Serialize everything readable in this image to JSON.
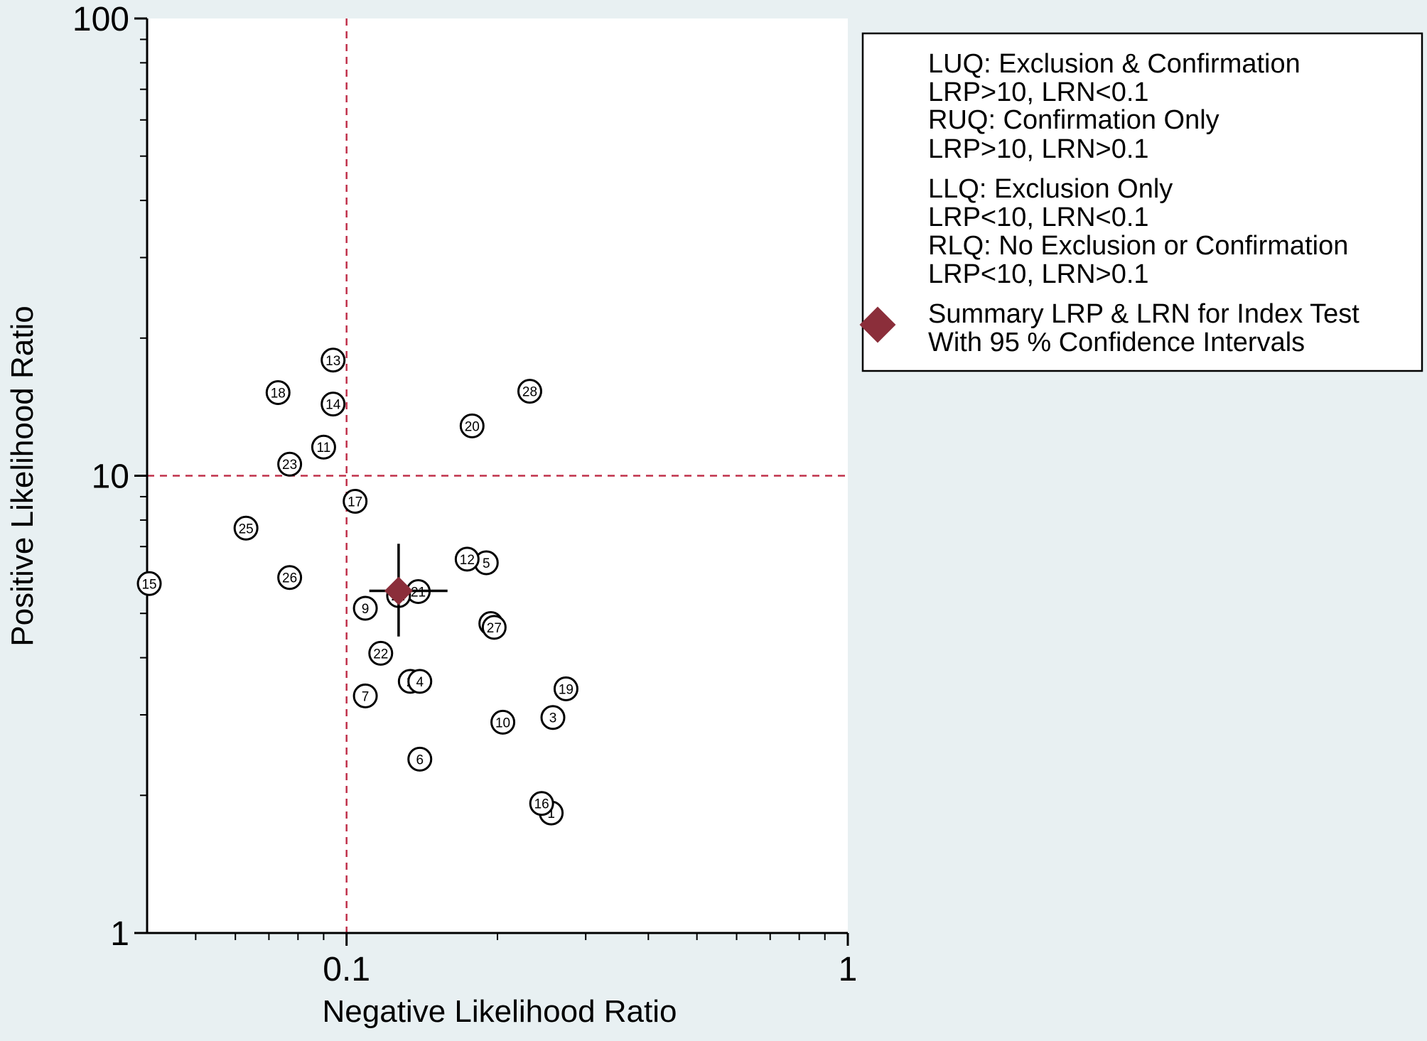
{
  "chart_data": {
    "type": "scatter",
    "title": "",
    "xlabel": "Negative Likelihood Ratio",
    "ylabel": "Positive Likelihood Ratio",
    "x_scale": "log",
    "y_scale": "log",
    "xlim": [
      0.04,
      1
    ],
    "ylim": [
      1,
      100
    ],
    "x_ticks": [
      {
        "value": 0.1,
        "label": "0.1"
      },
      {
        "value": 1,
        "label": "1"
      }
    ],
    "y_ticks": [
      {
        "value": 1,
        "label": "1"
      },
      {
        "value": 10,
        "label": "10"
      },
      {
        "value": 100,
        "label": "100"
      }
    ],
    "reference_lines": {
      "x": 0.1,
      "y": 10,
      "color": "#c0304a"
    },
    "points": [
      {
        "id": "1",
        "x": 0.256,
        "y": 1.83
      },
      {
        "id": "2",
        "x": 0.134,
        "y": 3.55
      },
      {
        "id": "3",
        "x": 0.258,
        "y": 2.96
      },
      {
        "id": "4",
        "x": 0.14,
        "y": 3.55
      },
      {
        "id": "5",
        "x": 0.19,
        "y": 6.45
      },
      {
        "id": "6",
        "x": 0.14,
        "y": 2.4
      },
      {
        "id": "7",
        "x": 0.109,
        "y": 3.3
      },
      {
        "id": "8",
        "x": 0.194,
        "y": 4.75
      },
      {
        "id": "9",
        "x": 0.109,
        "y": 5.13
      },
      {
        "id": "10",
        "x": 0.205,
        "y": 2.89
      },
      {
        "id": "11",
        "x": 0.09,
        "y": 11.55
      },
      {
        "id": "12",
        "x": 0.174,
        "y": 6.57
      },
      {
        "id": "13",
        "x": 0.094,
        "y": 17.9
      },
      {
        "id": "14",
        "x": 0.094,
        "y": 14.35
      },
      {
        "id": "15",
        "x": 0.0404,
        "y": 5.81
      },
      {
        "id": "16",
        "x": 0.245,
        "y": 1.92
      },
      {
        "id": "17",
        "x": 0.104,
        "y": 8.79
      },
      {
        "id": "18",
        "x": 0.073,
        "y": 15.2
      },
      {
        "id": "19",
        "x": 0.274,
        "y": 3.42
      },
      {
        "id": "20",
        "x": 0.178,
        "y": 12.85
      },
      {
        "id": "21",
        "x": 0.139,
        "y": 5.58
      },
      {
        "id": "22",
        "x": 0.117,
        "y": 4.09
      },
      {
        "id": "23",
        "x": 0.077,
        "y": 10.6
      },
      {
        "id": "24",
        "x": 0.127,
        "y": 5.47
      },
      {
        "id": "25",
        "x": 0.063,
        "y": 7.68
      },
      {
        "id": "26",
        "x": 0.077,
        "y": 5.99
      },
      {
        "id": "27",
        "x": 0.197,
        "y": 4.66
      },
      {
        "id": "28",
        "x": 0.232,
        "y": 15.3
      }
    ],
    "summary": {
      "x": 0.127,
      "y": 5.6,
      "x_ci": [
        0.111,
        0.159
      ],
      "y_ci": [
        4.45,
        7.1
      ],
      "color": "#8b2e3a"
    }
  },
  "legend": {
    "lines": [
      "LUQ: Exclusion & Confirmation",
      "LRP>10, LRN<0.1",
      "RUQ: Confirmation Only",
      "LRP>10, LRN>0.1",
      "LLQ: Exclusion Only",
      "LRP<10, LRN<0.1",
      "RLQ: No Exclusion or Confirmation",
      "LRP<10, LRN>0.1"
    ],
    "summary_lines": [
      "Summary LRP & LRN for Index Test",
      "With 95 % Confidence Intervals"
    ]
  }
}
